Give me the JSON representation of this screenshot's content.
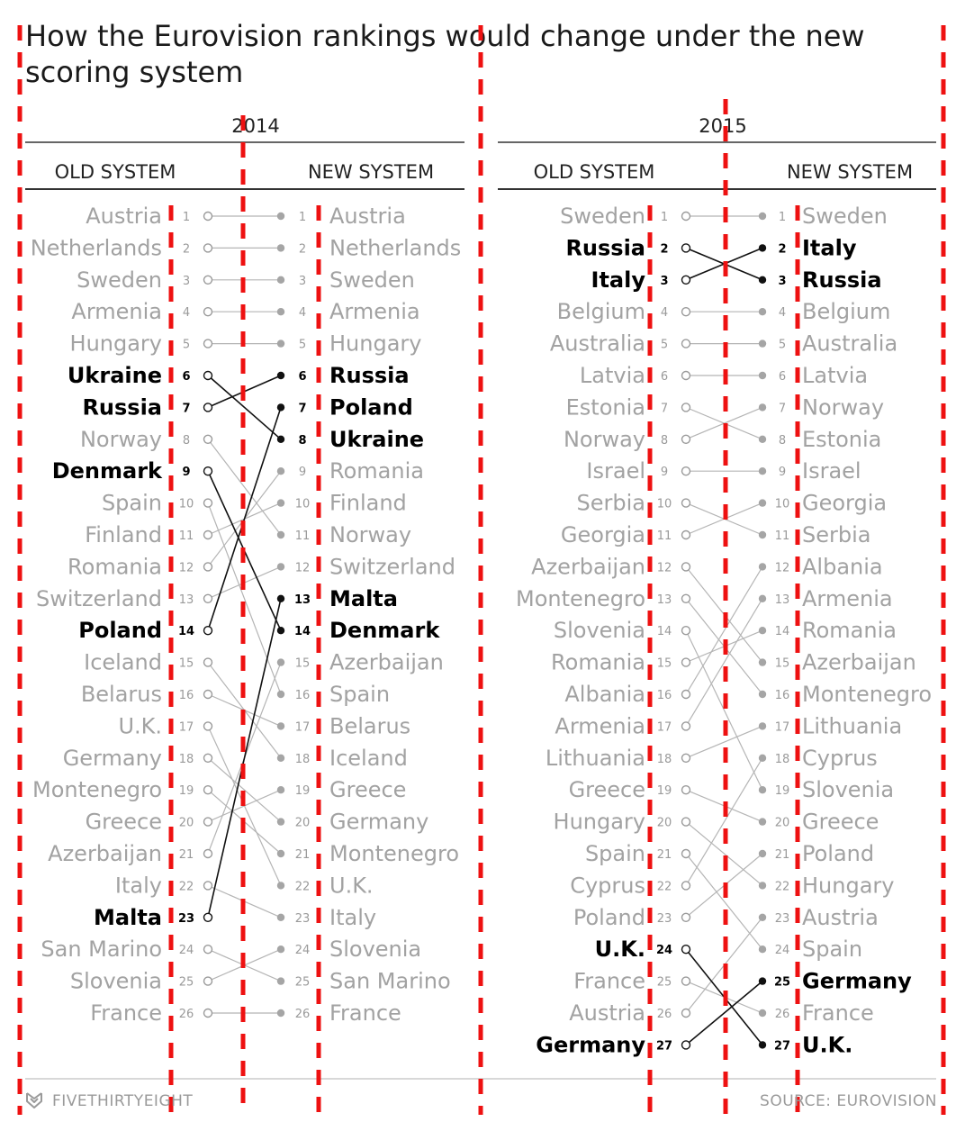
{
  "title": "How the Eurovision rankings would change under the new scoring system",
  "footer": {
    "brand": "FIVETHIRTYEIGHT",
    "source": "SOURCE: EUROVISION"
  },
  "colors": {
    "highlight": "#000000",
    "muted": "#a2a2a2",
    "guide_overlay": "#ee1111",
    "rule": "#333333"
  },
  "chart_data": {
    "type": "slope",
    "panels": [
      {
        "year": "2014",
        "left_header": "OLD SYSTEM",
        "right_header": "NEW SYSTEM",
        "old_ranking": [
          "Austria",
          "Netherlands",
          "Sweden",
          "Armenia",
          "Hungary",
          "Ukraine",
          "Russia",
          "Norway",
          "Denmark",
          "Spain",
          "Finland",
          "Romania",
          "Switzerland",
          "Poland",
          "Iceland",
          "Belarus",
          "U.K.",
          "Germany",
          "Montenegro",
          "Greece",
          "Azerbaijan",
          "Italy",
          "Malta",
          "San Marino",
          "Slovenia",
          "France"
        ],
        "new_ranking": [
          "Austria",
          "Netherlands",
          "Sweden",
          "Armenia",
          "Hungary",
          "Russia",
          "Poland",
          "Ukraine",
          "Romania",
          "Finland",
          "Norway",
          "Switzerland",
          "Malta",
          "Denmark",
          "Azerbaijan",
          "Spain",
          "Belarus",
          "Iceland",
          "Greece",
          "Germany",
          "Montenegro",
          "U.K.",
          "Italy",
          "Slovenia",
          "San Marino",
          "France"
        ],
        "highlighted": [
          "Ukraine",
          "Russia",
          "Poland",
          "Denmark",
          "Malta"
        ]
      },
      {
        "year": "2015",
        "left_header": "OLD SYSTEM",
        "right_header": "NEW SYSTEM",
        "old_ranking": [
          "Sweden",
          "Russia",
          "Italy",
          "Belgium",
          "Australia",
          "Latvia",
          "Estonia",
          "Norway",
          "Israel",
          "Serbia",
          "Georgia",
          "Azerbaijan",
          "Montenegro",
          "Slovenia",
          "Romania",
          "Albania",
          "Armenia",
          "Lithuania",
          "Greece",
          "Hungary",
          "Spain",
          "Cyprus",
          "Poland",
          "U.K.",
          "France",
          "Austria",
          "Germany"
        ],
        "new_ranking": [
          "Sweden",
          "Italy",
          "Russia",
          "Belgium",
          "Australia",
          "Latvia",
          "Norway",
          "Estonia",
          "Israel",
          "Georgia",
          "Serbia",
          "Albania",
          "Armenia",
          "Romania",
          "Azerbaijan",
          "Montenegro",
          "Lithuania",
          "Cyprus",
          "Slovenia",
          "Greece",
          "Poland",
          "Hungary",
          "Austria",
          "Spain",
          "Germany",
          "France",
          "U.K."
        ],
        "highlighted": [
          "Russia",
          "Italy",
          "U.K.",
          "Germany"
        ]
      }
    ]
  }
}
